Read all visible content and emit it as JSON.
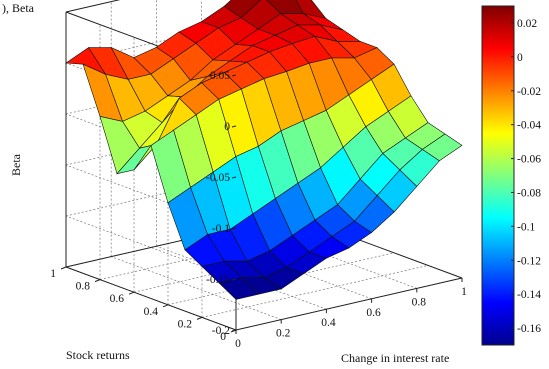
{
  "chart_data": {
    "type": "surface3d",
    "title": "",
    "caption_fragment": "), Beta",
    "xlabel": "Change in interest rate",
    "ylabel": "Stock returns",
    "zlabel": "Beta",
    "xlim": [
      0,
      1
    ],
    "ylim": [
      0,
      1
    ],
    "zlim": [
      -0.2,
      0.05
    ],
    "x_ticks": [
      "0",
      "0.2",
      "0.4",
      "0.6",
      "0.8",
      "1"
    ],
    "y_ticks": [
      "0",
      "0.2",
      "0.4",
      "0.6",
      "0.8",
      "1"
    ],
    "z_ticks": [
      "0.05",
      "0",
      "-0.05",
      "-0.1",
      "-0.15",
      "-0.2"
    ],
    "grid": true,
    "colormap": "jet",
    "colorbar": {
      "range": [
        -0.17,
        0.03
      ],
      "ticks": [
        "0.02",
        "0",
        "-0.02",
        "-0.04",
        "-0.06",
        "-0.08",
        "-0.1",
        "-0.12",
        "-0.14",
        "-0.16"
      ]
    },
    "surface": {
      "x": [
        0,
        0.1,
        0.2,
        0.3,
        0.4,
        0.5,
        0.6,
        0.7,
        0.8,
        0.9,
        1.0
      ],
      "y": [
        0,
        0.1,
        0.2,
        0.3,
        0.4,
        0.5,
        0.6,
        0.7,
        0.8,
        0.9,
        1.0
      ],
      "z": [
        [
          -0.17,
          -0.17,
          -0.17,
          -0.16,
          -0.15,
          -0.145,
          -0.135,
          -0.12,
          -0.1,
          -0.08,
          -0.07
        ],
        [
          -0.16,
          -0.16,
          -0.165,
          -0.16,
          -0.15,
          -0.14,
          -0.13,
          -0.11,
          -0.09,
          -0.075,
          -0.065
        ],
        [
          -0.15,
          -0.15,
          -0.155,
          -0.15,
          -0.14,
          -0.13,
          -0.12,
          -0.1,
          -0.08,
          -0.07,
          -0.06
        ],
        [
          -0.14,
          -0.13,
          -0.13,
          -0.12,
          -0.11,
          -0.1,
          -0.09,
          -0.075,
          -0.06,
          -0.05,
          -0.04
        ],
        [
          -0.1,
          -0.09,
          -0.08,
          -0.07,
          -0.065,
          -0.055,
          -0.05,
          -0.045,
          -0.035,
          -0.025,
          -0.015
        ],
        [
          -0.05,
          -0.04,
          -0.03,
          -0.02,
          -0.015,
          -0.01,
          -0.008,
          -0.005,
          -0.005,
          -0.01,
          -0.005
        ],
        [
          -0.08,
          -0.06,
          -0.02,
          -0.01,
          -0.005,
          0.0,
          0.005,
          0.008,
          0.01,
          0.0,
          -0.005
        ],
        [
          -0.09,
          -0.07,
          -0.05,
          -0.03,
          -0.015,
          -0.005,
          0.005,
          0.01,
          0.015,
          0.01,
          0.0
        ],
        [
          -0.04,
          -0.05,
          -0.045,
          -0.035,
          -0.025,
          -0.01,
          0.0,
          0.01,
          0.02,
          0.015,
          0.005
        ],
        [
          0.005,
          -0.01,
          -0.02,
          -0.02,
          -0.01,
          0.0,
          0.01,
          0.015,
          0.03,
          0.04,
          0.02
        ],
        [
          0.0,
          0.01,
          0.005,
          -0.01,
          -0.005,
          0.005,
          0.01,
          0.02,
          0.035,
          0.045,
          0.03
        ]
      ]
    }
  }
}
